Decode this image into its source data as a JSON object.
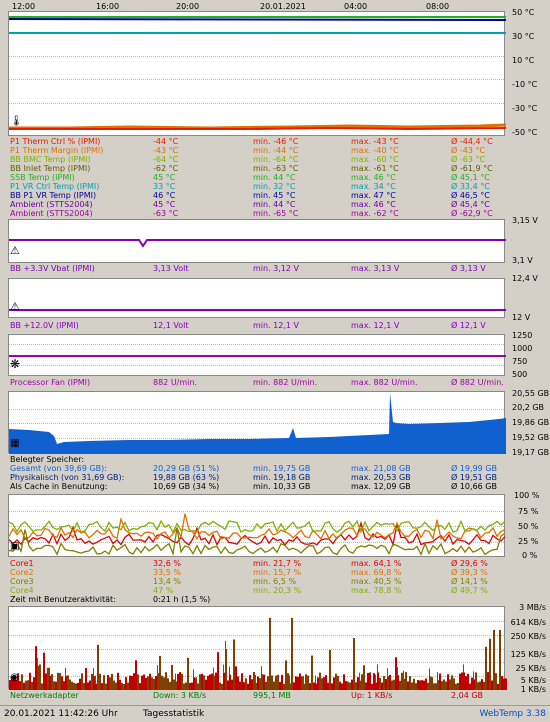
{
  "time_axis": [
    "12:00",
    "16:00",
    "20:00",
    "20.01.2021",
    "04:00",
    "08:00"
  ],
  "temp_panel": {
    "ylabels": [
      "50 °C",
      "30 °C",
      "10 °C",
      "-10 °C",
      "-30 °C",
      "-50 °C"
    ],
    "rows": [
      {
        "name": "P1 Therm Ctrl % (IPMI)",
        "cur": "-44 °C",
        "min": "min. -46 °C",
        "max": "max. -43 °C",
        "avg": "Ø -44,4 °C",
        "color": "#e02000"
      },
      {
        "name": "P1 Therm Margin (IPMI)",
        "cur": "-43 °C",
        "min": "min. -44 °C",
        "max": "max. -40 °C",
        "avg": "Ø -43 °C",
        "color": "#e07000"
      },
      {
        "name": "BB BMC Temp (IPMI)",
        "cur": "-64 °C",
        "min": "min. -64 °C",
        "max": "max. -60 °C",
        "avg": "Ø -63 °C",
        "color": "#80b000"
      },
      {
        "name": "BB Inlet Temp (IPMI)",
        "cur": "-62 °C",
        "min": "min. -63 °C",
        "max": "max. -61 °C",
        "avg": "Ø -61,9 °C",
        "color": "#606000"
      },
      {
        "name": "SSB Temp (IPMI)",
        "cur": "45 °C",
        "min": "min. 44 °C",
        "max": "max. 46 °C",
        "avg": "Ø 45,1 °C",
        "color": "#20b020"
      },
      {
        "name": "P1 VR Ctrl Temp (IPMI)",
        "cur": "33 °C",
        "min": "min. 32 °C",
        "max": "max. 34 °C",
        "avg": "Ø 33,4 °C",
        "color": "#00a0b0"
      },
      {
        "name": "BB P1 VR Temp (IPMI)",
        "cur": "46 °C",
        "min": "min. 45 °C",
        "max": "max. 47 °C",
        "avg": "Ø 46,5 °C",
        "color": "#0000a0"
      },
      {
        "name": "Ambient (STTS2004)",
        "cur": "45 °C",
        "min": "min. 44 °C",
        "max": "max. 46 °C",
        "avg": "Ø 45,4 °C",
        "color": "#7000a0"
      },
      {
        "name": "Ambient (STTS2004)",
        "cur": "-63 °C",
        "min": "min. -65 °C",
        "max": "max. -62 °C",
        "avg": "Ø -62,9 °C",
        "color": "#a000a0"
      }
    ]
  },
  "vbat_panel": {
    "ylabels": [
      "3,15 V",
      "3,1 V"
    ],
    "row": {
      "name": "BB +3.3V Vbat (IPMI)",
      "cur": "3,13 Volt",
      "min": "min. 3,12 V",
      "max": "max. 3,13 V",
      "avg": "Ø 3,13 V"
    }
  },
  "v12_panel": {
    "ylabels": [
      "12,4 V",
      "12 V"
    ],
    "row": {
      "name": "BB +12.0V (IPMI)",
      "cur": "12,1 Volt",
      "min": "min. 12,1 V",
      "max": "max. 12,1 V",
      "avg": "Ø 12,1 V"
    }
  },
  "fan_panel": {
    "ylabels": [
      "1250",
      "1000",
      "750",
      "500"
    ],
    "row": {
      "name": "Processor Fan (IPMI)",
      "cur": "882 U/min.",
      "min": "min. 882 U/min.",
      "max": "max. 882 U/min.",
      "avg": "Ø 882 U/min."
    }
  },
  "mem_panel": {
    "ylabels": [
      "20,55 GB",
      "20,2 GB",
      "19,86 GB",
      "19,52 GB",
      "19,17 GB"
    ],
    "header": "Belegter Speicher:",
    "rows": [
      {
        "name": "Gesamt (von 39,69 GB):",
        "cur": "20,29 GB (51 %)",
        "min": "min. 19,75 GB",
        "max": "max. 21,08 GB",
        "avg": "Ø 19,99 GB",
        "color": "#1060d0"
      },
      {
        "name": "Physikalisch (von 31,69 GB):",
        "cur": "19,88 GB (63 %)",
        "min": "min. 19,18 GB",
        "max": "max. 20,53 GB",
        "avg": "Ø 19,51 GB",
        "color": "#002080"
      },
      {
        "name": "Als Cache in Benutzung:",
        "cur": "10,69 GB (34 %)",
        "min": "min. 10,33 GB",
        "max": "max. 12,09 GB",
        "avg": "Ø 10,66 GB",
        "color": "#000000"
      }
    ]
  },
  "cpu_panel": {
    "ylabels": [
      "100 %",
      "75 %",
      "50 %",
      "25 %",
      "0 %"
    ],
    "rows": [
      {
        "name": "Core1",
        "cur": "32,6 %",
        "min": "min. 21,7 %",
        "max": "max. 64,1 %",
        "avg": "Ø 29,6 %",
        "color": "#e00000"
      },
      {
        "name": "Core2",
        "cur": "33,5 %",
        "min": "min. 15,7 %",
        "max": "max. 69,8 %",
        "avg": "Ø 39,3 %",
        "color": "#e07000"
      },
      {
        "name": "Core3",
        "cur": "13,4 %",
        "min": "min. 6,5 %",
        "max": "max. 40,5 %",
        "avg": "Ø 14,1 %",
        "color": "#808000"
      },
      {
        "name": "Core4",
        "cur": "47 %",
        "min": "min. 20,3 %",
        "max": "max. 78,8 %",
        "avg": "Ø 49,7 %",
        "color": "#80b000"
      }
    ],
    "activity_label": "Zeit mit Benutzeraktivität:",
    "activity_value": "0:21 h (1,5 %)"
  },
  "net_panel": {
    "ylabels": [
      "3 MB/s",
      "614 KB/s",
      "250 KB/s",
      "125 KB/s",
      "25 KB/s",
      "5 KB/s",
      "1 KB/s"
    ],
    "row": {
      "name": "Netzwerkadapter",
      "down": "Down: 3 KB/s",
      "down_total": "995,1 MB",
      "up": "Up: 1 KB/s",
      "up_total": "2,04 GB"
    }
  },
  "footer": {
    "timestamp": "20.01.2021 11:42:26 Uhr",
    "stats_label": "Tagesstatistik",
    "app_name": "WebTemp 3.38"
  },
  "colors": {
    "background": "#d4d0c8",
    "accent": "#0050c0"
  },
  "icons": [
    "thermometer-icon",
    "warning-icon",
    "fan-icon",
    "memory-chip-icon",
    "cpu-chip-icon",
    "network-icon"
  ]
}
